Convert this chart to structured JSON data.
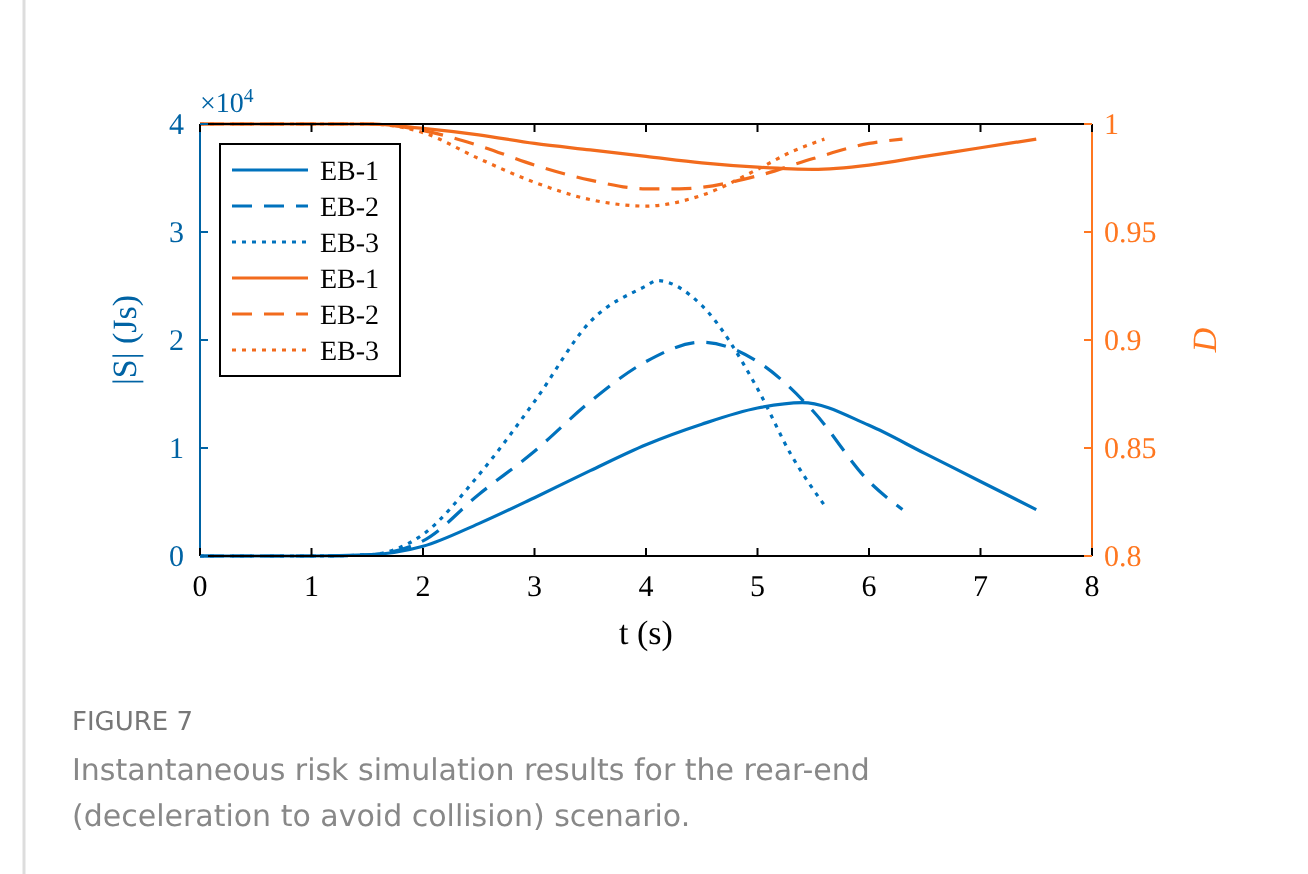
{
  "chart_data": {
    "type": "line",
    "xlabel": "t (s)",
    "ylabel": "|S| (Js)",
    "y2label": "D",
    "xlim": [
      0,
      8
    ],
    "xticks": [
      0,
      1,
      2,
      3,
      4,
      5,
      6,
      7,
      8
    ],
    "ylim": [
      0,
      4
    ],
    "yticks": [
      0,
      1,
      2,
      3,
      4
    ],
    "y2lim": [
      0.8,
      1
    ],
    "y2ticks": [
      0.8,
      0.85,
      0.9,
      0.95,
      1
    ],
    "legend": "top left",
    "grid": false,
    "annotations": [
      "×10$^{4}$",
      "FIGURE 7",
      "Instantaneous risk simulation results for the rear-end (deceleration to avoid collision) scenario."
    ],
    "series": [
      {
        "name": "EB-1",
        "color": "#0072bd",
        "line_style": "solid",
        "x": [
          0,
          1,
          1.5,
          2,
          2.5,
          3,
          3.5,
          4,
          4.5,
          5,
          5.4,
          6,
          6.5,
          7,
          7.5
        ],
        "values": [
          0,
          0,
          0.01,
          0.09,
          0.3,
          0.54,
          0.79,
          1.03,
          1.22,
          1.37,
          1.42,
          1.21,
          0.95,
          0.69,
          0.43
        ]
      },
      {
        "name": "EB-2",
        "color": "#0072bd",
        "line_style": "dashed",
        "x": [
          0,
          1,
          1.5,
          2,
          2.5,
          3,
          3.5,
          4,
          4.5,
          5,
          5.5,
          6,
          6.3
        ],
        "values": [
          0,
          0,
          0.01,
          0.14,
          0.57,
          0.97,
          1.43,
          1.8,
          1.98,
          1.8,
          1.34,
          0.69,
          0.43
        ]
      },
      {
        "name": "EB-3",
        "color": "#0072bd",
        "line_style": "dotted",
        "x": [
          0,
          1,
          1.5,
          2,
          2.5,
          3,
          3.5,
          4,
          4.1,
          4.5,
          5,
          5.3,
          5.6
        ],
        "values": [
          0,
          0,
          0.01,
          0.2,
          0.75,
          1.43,
          2.17,
          2.5,
          2.55,
          2.32,
          1.55,
          0.94,
          0.47
        ]
      },
      {
        "name": "EB-1",
        "color": "#f26b1d",
        "line_style": "solid",
        "axis": "y2",
        "x": [
          0,
          1,
          1.5,
          2,
          2.5,
          3,
          3.5,
          4,
          4.5,
          5,
          5.5,
          6,
          6.5,
          7,
          7.5
        ],
        "values": [
          1,
          1,
          1,
          0.998,
          0.995,
          0.991,
          0.988,
          0.985,
          0.982,
          0.98,
          0.979,
          0.981,
          0.985,
          0.989,
          0.993
        ]
      },
      {
        "name": "EB-2",
        "color": "#f26b1d",
        "line_style": "dashed",
        "axis": "y2",
        "x": [
          0,
          1,
          1.5,
          2,
          2.5,
          3,
          3.5,
          4,
          4.3,
          5,
          5.5,
          6,
          6.3
        ],
        "values": [
          1,
          1,
          1,
          0.997,
          0.99,
          0.981,
          0.974,
          0.97,
          0.97,
          0.976,
          0.984,
          0.991,
          0.993
        ]
      },
      {
        "name": "EB-3",
        "color": "#f26b1d",
        "line_style": "dotted",
        "axis": "y2",
        "x": [
          0,
          1,
          1.5,
          2,
          2.5,
          3,
          3.5,
          4,
          4.5,
          5,
          5.3,
          5.6
        ],
        "values": [
          1,
          1,
          1,
          0.996,
          0.984,
          0.973,
          0.965,
          0.962,
          0.967,
          0.979,
          0.987,
          0.993
        ]
      }
    ]
  }
}
